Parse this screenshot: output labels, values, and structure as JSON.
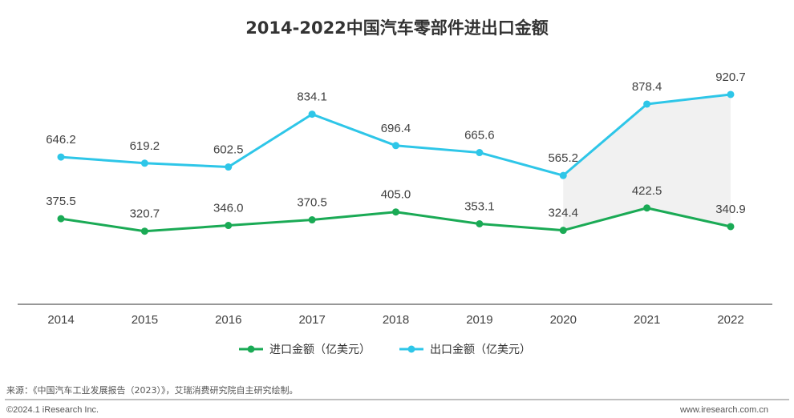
{
  "chart_data": {
    "type": "line",
    "title": "2014-2022中国汽车零部件进出口金额",
    "categories": [
      "2014",
      "2015",
      "2016",
      "2017",
      "2018",
      "2019",
      "2020",
      "2021",
      "2022"
    ],
    "series": [
      {
        "name": "进口金额（亿美元）",
        "color": "#1aaa55",
        "values": [
          375.5,
          320.7,
          346.0,
          370.5,
          405.0,
          353.1,
          324.4,
          422.5,
          340.9
        ],
        "labels": [
          "375.5",
          "320.7",
          "346.0",
          "370.5",
          "405.0",
          "353.1",
          "324.4",
          "422.5",
          "340.9"
        ]
      },
      {
        "name": "出口金额（亿美元）",
        "color": "#2ec6e8",
        "values": [
          646.2,
          619.2,
          602.5,
          834.1,
          696.4,
          665.6,
          565.2,
          878.4,
          920.7
        ],
        "labels": [
          "646.2",
          "619.2",
          "602.5",
          "834.1",
          "696.4",
          "665.6",
          "565.2",
          "878.4",
          "920.7"
        ]
      }
    ],
    "highlight_range": [
      "2020",
      "2022"
    ],
    "ylim": [
      0,
      1300
    ],
    "xlabel": "",
    "ylabel": "",
    "legend": "bottom-center"
  },
  "footer": {
    "source": "来源：《中国汽车工业发展报告（2023）》，艾瑞消费研究院自主研究绘制。",
    "copyright": "©2024.1 iResearch Inc.",
    "website": "www.iresearch.com.cn"
  }
}
